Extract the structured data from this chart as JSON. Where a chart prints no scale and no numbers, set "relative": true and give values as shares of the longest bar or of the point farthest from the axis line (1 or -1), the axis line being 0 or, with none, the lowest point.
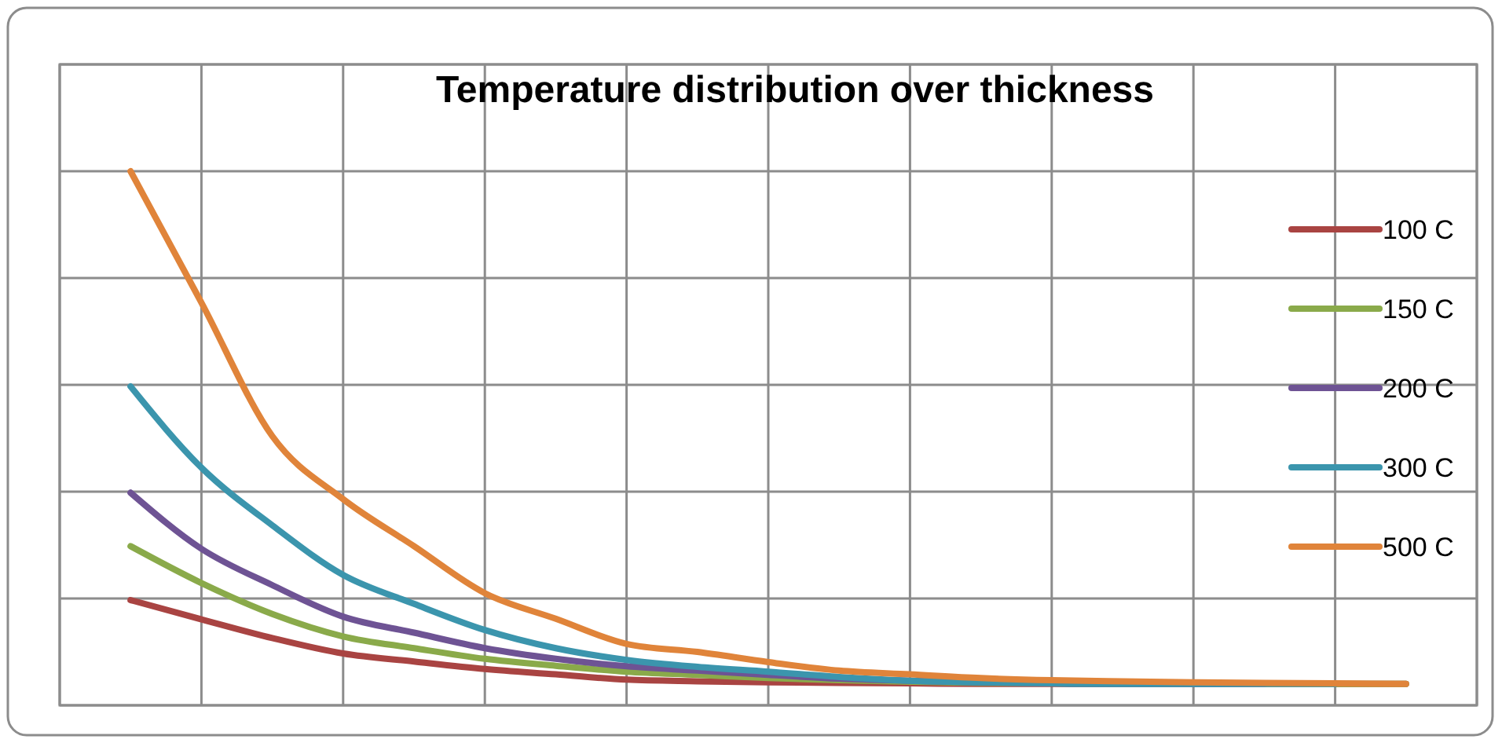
{
  "chart_data": {
    "type": "line",
    "title": "Temperature distribution over thickness",
    "relative": true,
    "grid": true,
    "legend": "right",
    "marker": "none",
    "line_style": "solid",
    "categories": [
      null,
      null,
      null,
      null,
      null,
      null,
      null,
      null,
      null,
      null,
      null,
      null,
      null,
      null,
      null,
      null,
      null,
      null,
      null
    ],
    "series": [
      {
        "name": "100 C",
        "color": "#a94442",
        "values": [
          0.197,
          0.161,
          0.126,
          0.097,
          0.082,
          0.068,
          0.058,
          0.048,
          0.045,
          0.043,
          0.042,
          0.041,
          0.04,
          0.04,
          0.04,
          0.04,
          0.04,
          0.04,
          0.04
        ]
      },
      {
        "name": "150 C",
        "color": "#8aaa4a",
        "values": [
          0.298,
          0.229,
          0.171,
          0.129,
          0.107,
          0.087,
          0.074,
          0.063,
          0.057,
          0.051,
          0.047,
          0.044,
          0.042,
          0.041,
          0.04,
          0.04,
          0.04,
          0.04,
          0.04
        ]
      },
      {
        "name": "200 C",
        "color": "#6e5394",
        "values": [
          0.398,
          0.293,
          0.225,
          0.166,
          0.136,
          0.107,
          0.087,
          0.073,
          0.065,
          0.057,
          0.05,
          0.046,
          0.043,
          0.041,
          0.04,
          0.04,
          0.04,
          null,
          null
        ]
      },
      {
        "name": "300 C",
        "color": "#3b95ad",
        "values": [
          0.597,
          0.445,
          0.337,
          0.244,
          0.19,
          0.141,
          0.107,
          0.085,
          0.072,
          0.063,
          0.053,
          0.046,
          0.043,
          0.041,
          0.04,
          0.04,
          0.04,
          0.04,
          null
        ]
      },
      {
        "name": "500 C",
        "color": "#e0843a",
        "values": [
          1.0,
          0.754,
          0.504,
          0.386,
          0.298,
          0.21,
          0.162,
          0.115,
          0.1,
          0.081,
          0.065,
          0.058,
          0.051,
          0.047,
          0.045,
          0.043,
          0.042,
          0.041,
          0.04
        ]
      }
    ]
  }
}
